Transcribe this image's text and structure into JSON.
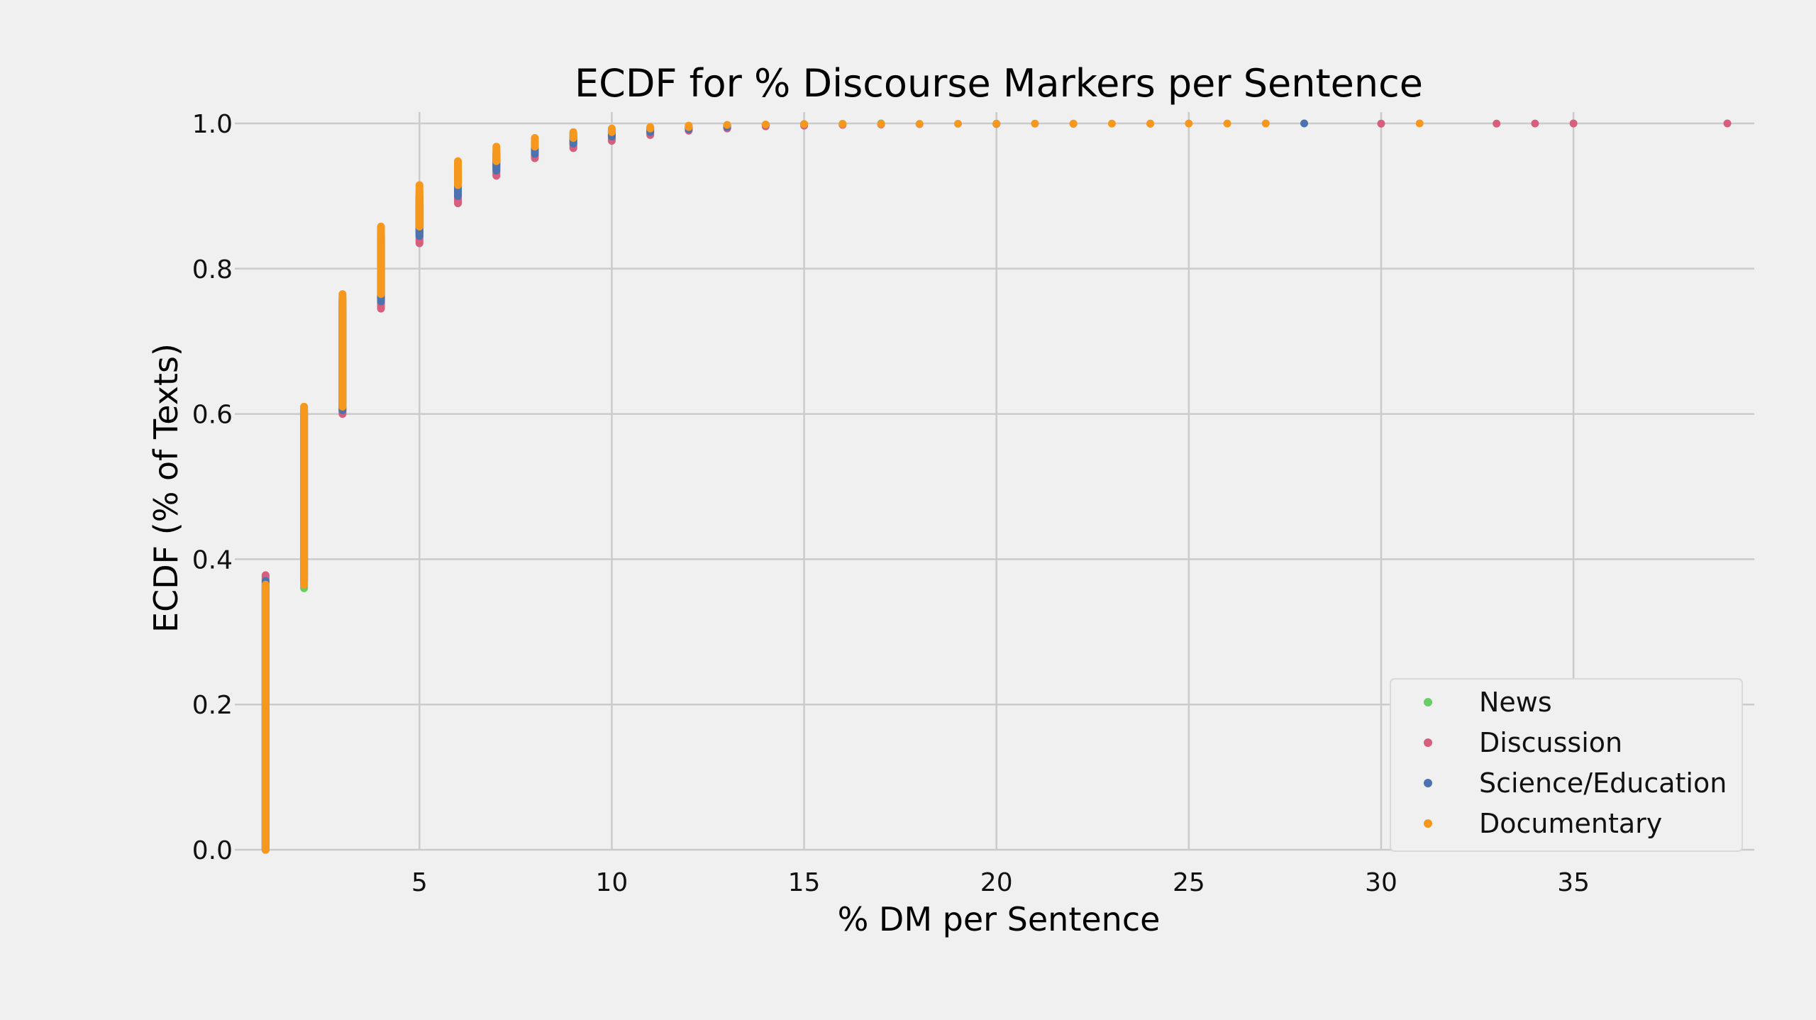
{
  "chart_data": {
    "type": "scatter",
    "title": "ECDF for % Discourse Markers per Sentence",
    "xlabel": "% DM per Sentence",
    "ylabel": "ECDF (% of Texts)",
    "xlim": [
      0.2,
      39.7
    ],
    "ylim": [
      0,
      1
    ],
    "xticks": [
      5,
      10,
      15,
      20,
      25,
      30,
      35
    ],
    "yticks": [
      "0.0",
      "0.2",
      "0.4",
      "0.6",
      "0.8",
      "1.0"
    ],
    "grid": true,
    "legend_position": "lower-right",
    "series": [
      {
        "name": "News",
        "color": "#6acc64",
        "steps": [
          [
            1,
            0,
            0.36
          ],
          [
            2,
            0.36,
            0.605
          ],
          [
            3,
            0.605,
            0.76
          ],
          [
            4,
            0.76,
            0.85
          ],
          [
            5,
            0.85,
            0.905
          ],
          [
            6,
            0.905,
            0.94
          ],
          [
            7,
            0.94,
            0.962
          ],
          [
            8,
            0.962,
            0.976
          ],
          [
            9,
            0.976,
            0.986
          ],
          [
            10,
            0.986,
            0.991
          ],
          [
            11,
            0.991,
            0.994
          ],
          [
            12,
            0.994,
            0.996
          ],
          [
            13,
            0.996,
            0.997
          ],
          [
            14,
            0.997,
            0.998
          ],
          [
            15,
            0.998,
            0.999
          ],
          [
            16,
            0.999,
            0.9995
          ],
          [
            17,
            0.9995,
            1.0
          ]
        ]
      },
      {
        "name": "Discussion",
        "color": "#d65f7d",
        "steps": [
          [
            1,
            0,
            0.378
          ],
          [
            2,
            0.378,
            0.6
          ],
          [
            3,
            0.6,
            0.745
          ],
          [
            4,
            0.745,
            0.835
          ],
          [
            5,
            0.835,
            0.89
          ],
          [
            6,
            0.89,
            0.928
          ],
          [
            7,
            0.928,
            0.952
          ],
          [
            8,
            0.952,
            0.966
          ],
          [
            9,
            0.966,
            0.976
          ],
          [
            10,
            0.976,
            0.984
          ],
          [
            11,
            0.984,
            0.99
          ],
          [
            12,
            0.99,
            0.993
          ],
          [
            13,
            0.993,
            0.995
          ],
          [
            14,
            0.995,
            0.996
          ],
          [
            15,
            0.996,
            0.997
          ],
          [
            16,
            0.997,
            0.998
          ],
          [
            17,
            0.998,
            0.9985
          ],
          [
            18,
            0.9985,
            0.999
          ],
          [
            20,
            0.999,
            0.9993
          ],
          [
            22,
            0.9993,
            0.9995
          ],
          [
            24,
            0.9995,
            0.9996
          ],
          [
            30,
            0.9996,
            0.9997
          ],
          [
            33,
            0.9997,
            0.9998
          ],
          [
            34,
            0.9998,
            0.9999
          ],
          [
            35,
            0.9999,
            0.99995
          ],
          [
            39,
            0.99995,
            1.0
          ]
        ]
      },
      {
        "name": "Science/Education",
        "color": "#4c72b0",
        "steps": [
          [
            1,
            0,
            0.37
          ],
          [
            2,
            0.37,
            0.605
          ],
          [
            3,
            0.605,
            0.755
          ],
          [
            4,
            0.755,
            0.845
          ],
          [
            5,
            0.845,
            0.9
          ],
          [
            6,
            0.9,
            0.935
          ],
          [
            7,
            0.935,
            0.958
          ],
          [
            8,
            0.958,
            0.972
          ],
          [
            9,
            0.972,
            0.982
          ],
          [
            10,
            0.982,
            0.988
          ],
          [
            11,
            0.988,
            0.992
          ],
          [
            12,
            0.992,
            0.995
          ],
          [
            13,
            0.995,
            0.997
          ],
          [
            14,
            0.997,
            0.998
          ],
          [
            15,
            0.998,
            0.999
          ],
          [
            20,
            0.999,
            0.9995
          ],
          [
            28,
            0.9995,
            1.0
          ]
        ]
      },
      {
        "name": "Documentary",
        "color": "#f5981d",
        "steps": [
          [
            1,
            0,
            0.365
          ],
          [
            2,
            0.365,
            0.61
          ],
          [
            3,
            0.61,
            0.765
          ],
          [
            4,
            0.765,
            0.858
          ],
          [
            5,
            0.858,
            0.915
          ],
          [
            6,
            0.915,
            0.948
          ],
          [
            7,
            0.948,
            0.968
          ],
          [
            8,
            0.968,
            0.98
          ],
          [
            9,
            0.98,
            0.988
          ],
          [
            10,
            0.988,
            0.993
          ],
          [
            11,
            0.993,
            0.995
          ],
          [
            12,
            0.995,
            0.997
          ],
          [
            13,
            0.997,
            0.998
          ],
          [
            14,
            0.998,
            0.9985
          ],
          [
            15,
            0.9985,
            0.999
          ],
          [
            16,
            0.999,
            0.9992
          ],
          [
            17,
            0.9992,
            0.9993
          ],
          [
            18,
            0.9993,
            0.9994
          ],
          [
            19,
            0.9994,
            0.9995
          ],
          [
            20,
            0.9995,
            0.9996
          ],
          [
            21,
            0.9996,
            0.9997
          ],
          [
            22,
            0.9997,
            0.9997
          ],
          [
            23,
            0.9997,
            0.9998
          ],
          [
            24,
            0.9998,
            0.9998
          ],
          [
            25,
            0.9998,
            0.9999
          ],
          [
            26,
            0.9999,
            0.9999
          ],
          [
            27,
            0.9999,
            0.99995
          ],
          [
            31,
            0.99995,
            1.0
          ]
        ]
      }
    ]
  }
}
